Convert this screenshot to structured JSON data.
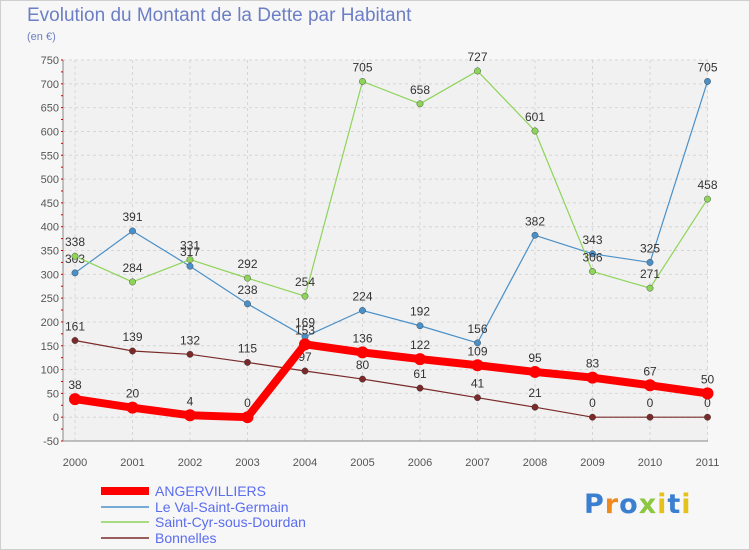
{
  "header": {
    "title": "Evolution du Montant de la Dette par Habitant",
    "unit": "(en €)"
  },
  "logo": {
    "text": "Proxiti"
  },
  "chart_data": {
    "type": "line",
    "title": "Evolution du Montant de la Dette par Habitant",
    "subtitle": "(en €)",
    "x": [
      "2000",
      "2001",
      "2002",
      "2003",
      "2004",
      "2005",
      "2006",
      "2007",
      "2008",
      "2009",
      "2010",
      "2011"
    ],
    "ylim": [
      -50,
      750
    ],
    "yticks": [
      -50,
      0,
      50,
      100,
      150,
      200,
      250,
      300,
      350,
      400,
      450,
      500,
      550,
      600,
      650,
      700,
      750
    ],
    "grid": true,
    "legend_position": "bottom-left",
    "series": [
      {
        "name": "ANGERVILLIERS",
        "color": "#ff0000",
        "values": [
          38,
          20,
          4,
          0,
          153,
          136,
          122,
          109,
          95,
          83,
          67,
          50
        ]
      },
      {
        "name": "Le Val-Saint-Germain",
        "color": "#4a90c8",
        "values": [
          303,
          391,
          317,
          238,
          169,
          224,
          192,
          156,
          382,
          343,
          325,
          705
        ]
      },
      {
        "name": "Saint-Cyr-sous-Dourdan",
        "color": "#8fd45a",
        "values": [
          338,
          284,
          331,
          292,
          254,
          705,
          658,
          727,
          601,
          306,
          271,
          458
        ]
      },
      {
        "name": "Bonnelles",
        "color": "#7a2a2a",
        "values": [
          161,
          139,
          132,
          115,
          97,
          80,
          61,
          41,
          21,
          0,
          0,
          0
        ]
      }
    ]
  }
}
